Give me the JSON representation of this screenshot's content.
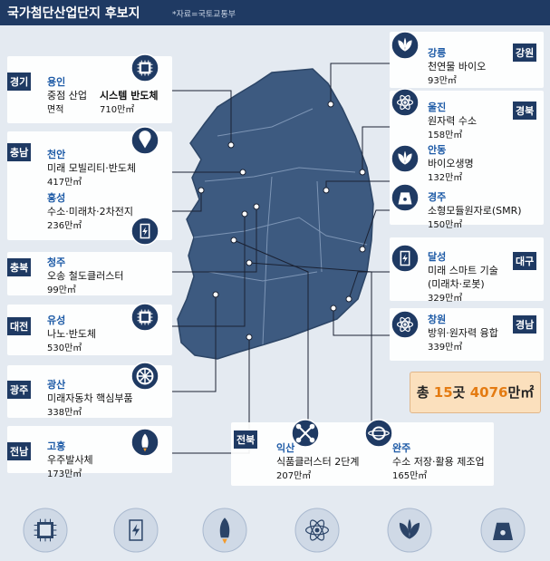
{
  "header": {
    "title": "국가첨단산업단지 후보지",
    "source": "*자료=국토교통부"
  },
  "regions": [
    {
      "region": "경기",
      "sites": [
        {
          "name": "용인",
          "industry_label": "중점 산업",
          "industry": "시스템 반도체",
          "area_label": "면적",
          "area": "710만㎡"
        }
      ]
    },
    {
      "region": "충남",
      "sites": [
        {
          "name": "천안",
          "industry": "미래 모빌리티·반도체",
          "area": "417만㎡"
        },
        {
          "name": "홍성",
          "industry": "수소·미래차·2차전지",
          "area": "236만㎡"
        }
      ]
    },
    {
      "region": "충북",
      "sites": [
        {
          "name": "청주",
          "industry": "오송 철도클러스터",
          "area": "99만㎡"
        }
      ]
    },
    {
      "region": "대전",
      "sites": [
        {
          "name": "유성",
          "industry": "나노·반도체",
          "area": "530만㎡"
        }
      ]
    },
    {
      "region": "광주",
      "sites": [
        {
          "name": "광산",
          "industry": "미래자동차 핵심부품",
          "area": "338만㎡"
        }
      ]
    },
    {
      "region": "전남",
      "sites": [
        {
          "name": "고흥",
          "industry": "우주발사체",
          "area": "173만㎡"
        }
      ]
    },
    {
      "region": "강원",
      "sites": [
        {
          "name": "강릉",
          "industry": "천연물 바이오",
          "area": "93만㎡"
        }
      ]
    },
    {
      "region": "경북",
      "sites": [
        {
          "name": "울진",
          "industry": "원자력 수소",
          "area": "158만㎡"
        },
        {
          "name": "안동",
          "industry": "바이오생명",
          "area": "132만㎡"
        },
        {
          "name": "경주",
          "industry": "소형모듈원자로(SMR)",
          "area": "150만㎡"
        }
      ]
    },
    {
      "region": "대구",
      "sites": [
        {
          "name": "달성",
          "industry": "미래 스마트 기술",
          "industry_note": "(미래차·로봇)",
          "area": "329만㎡"
        }
      ]
    },
    {
      "region": "경남",
      "sites": [
        {
          "name": "창원",
          "industry": "방위·원자력 융합",
          "area": "339만㎡"
        }
      ]
    },
    {
      "region": "전북",
      "sites": [
        {
          "name": "익산",
          "industry": "식품클러스터 2단계",
          "area": "207만㎡"
        },
        {
          "name": "완주",
          "industry": "수소 저장·활용 제조업",
          "area": "165만㎡"
        }
      ]
    }
  ],
  "total": {
    "prefix": "총",
    "count": "15",
    "count_unit": "곳",
    "area": "4076",
    "area_unit": "만㎡"
  }
}
